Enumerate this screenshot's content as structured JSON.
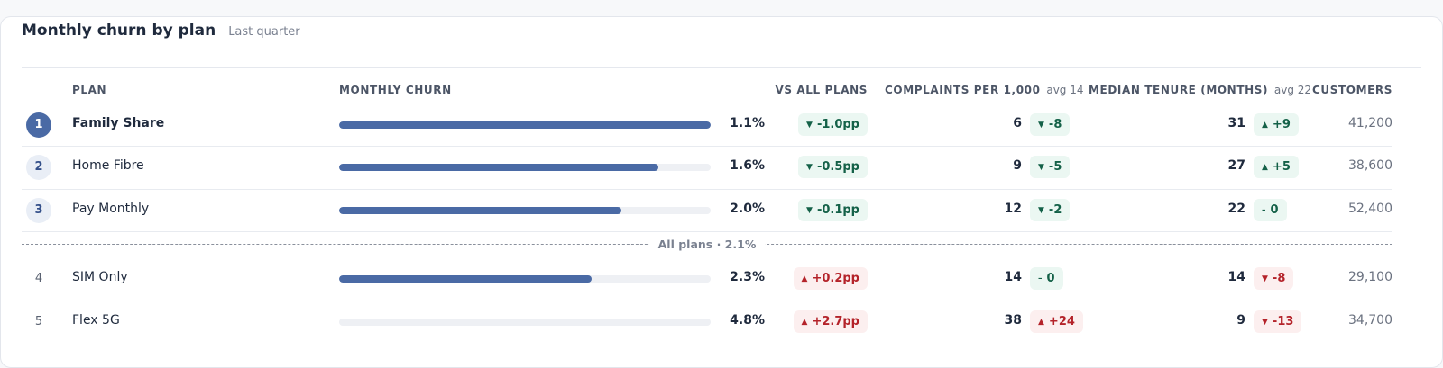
{
  "header": {
    "title": "Monthly churn by plan",
    "subtitle": "Last quarter"
  },
  "columns": {
    "plan": "PLAN",
    "churn": "MONTHLY CHURN",
    "vs_all": "VS ALL PLANS",
    "complaints": "COMPLAINTS PER 1,000",
    "complaints_avg": "avg 14",
    "tenure": "MEDIAN TENURE (MONTHS)",
    "tenure_avg": "avg 22",
    "customers": "CUSTOMERS"
  },
  "divider_label": "All plans · 2.1%",
  "colors": {
    "bar": "#4a6aa5",
    "good": "#146148",
    "bad": "#b4232a"
  },
  "rows": [
    {
      "rank": "1",
      "plan": "Family Share",
      "churn": "1.1%",
      "bar_fraction": 1.0,
      "vs_all": "-1.0pp",
      "vs_all_dir": "down",
      "complaints": "6",
      "complaints_delta": "-8",
      "complaints_dir": "down",
      "tenure": "31",
      "tenure_delta": "+9",
      "tenure_dir": "up",
      "customers": "41,200"
    },
    {
      "rank": "2",
      "plan": "Home Fibre",
      "churn": "1.6%",
      "bar_fraction": 0.86,
      "vs_all": "-0.5pp",
      "vs_all_dir": "down",
      "complaints": "9",
      "complaints_delta": "-5",
      "complaints_dir": "down",
      "tenure": "27",
      "tenure_delta": "+5",
      "tenure_dir": "up",
      "customers": "38,600"
    },
    {
      "rank": "3",
      "plan": "Pay Monthly",
      "churn": "2.0%",
      "bar_fraction": 0.76,
      "vs_all": "-0.1pp",
      "vs_all_dir": "down",
      "complaints": "12",
      "complaints_delta": "-2",
      "complaints_dir": "down",
      "tenure": "22",
      "tenure_delta": "0",
      "tenure_dir": "flat",
      "customers": "52,400"
    },
    {
      "rank": "4",
      "plan": "SIM Only",
      "churn": "2.3%",
      "bar_fraction": 0.68,
      "vs_all": "+0.2pp",
      "vs_all_dir": "up",
      "complaints": "14",
      "complaints_delta": "0",
      "complaints_dir": "flat",
      "tenure": "14",
      "tenure_delta": "-8",
      "tenure_dir": "down",
      "customers": "29,100"
    },
    {
      "rank": "5",
      "plan": "Flex 5G",
      "churn": "4.8%",
      "bar_fraction": 0.0,
      "vs_all": "+2.7pp",
      "vs_all_dir": "up",
      "complaints": "38",
      "complaints_delta": "+24",
      "complaints_dir": "up",
      "tenure": "9",
      "tenure_delta": "-13",
      "tenure_dir": "down",
      "customers": "34,700"
    }
  ]
}
